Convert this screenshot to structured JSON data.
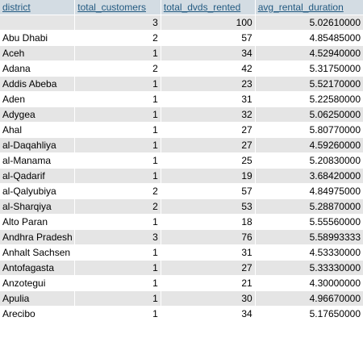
{
  "columns": [
    "district",
    "total_customers",
    "total_dvds_rented",
    "avg_rental_duration"
  ],
  "rows": [
    [
      "",
      "3",
      "100",
      "5.02610000"
    ],
    [
      "Abu Dhabi",
      "2",
      "57",
      "4.85485000"
    ],
    [
      "Aceh",
      "1",
      "34",
      "4.52940000"
    ],
    [
      "Adana",
      "2",
      "42",
      "5.31750000"
    ],
    [
      "Addis Abeba",
      "1",
      "23",
      "5.52170000"
    ],
    [
      "Aden",
      "1",
      "31",
      "5.22580000"
    ],
    [
      "Adygea",
      "1",
      "32",
      "5.06250000"
    ],
    [
      "Ahal",
      "1",
      "27",
      "5.80770000"
    ],
    [
      "al-Daqahliya",
      "1",
      "27",
      "4.59260000"
    ],
    [
      "al-Manama",
      "1",
      "25",
      "5.20830000"
    ],
    [
      "al-Qadarif",
      "1",
      "19",
      "3.68420000"
    ],
    [
      "al-Qalyubiya",
      "2",
      "57",
      "4.84975000"
    ],
    [
      "al-Sharqiya",
      "2",
      "53",
      "5.28870000"
    ],
    [
      "Alto Paran",
      "1",
      "18",
      "5.55560000"
    ],
    [
      "Andhra Pradesh",
      "3",
      "76",
      "5.58993333"
    ],
    [
      "Anhalt Sachsen",
      "1",
      "31",
      "4.53330000"
    ],
    [
      "Antofagasta",
      "1",
      "27",
      "5.33330000"
    ],
    [
      "Anzotegui",
      "1",
      "21",
      "4.30000000"
    ],
    [
      "Apulia",
      "1",
      "30",
      "4.96670000"
    ],
    [
      "Arecibo",
      "1",
      "34",
      "5.17650000"
    ]
  ],
  "colors": {
    "header_bg": "#d3dce3",
    "header_text": "#235a81",
    "row_odd": "#e5e5e5",
    "row_even": "#ffffff"
  }
}
